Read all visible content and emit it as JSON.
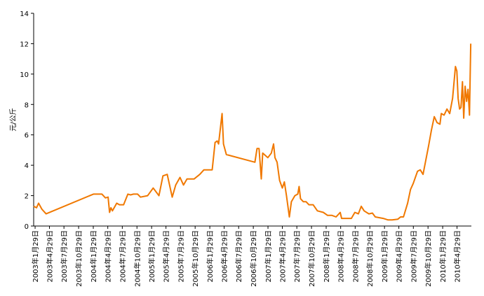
{
  "chart_data": {
    "type": "line",
    "ylabel": "元/公斤",
    "color": "#f07800",
    "xlim": [
      "2003-01-20",
      "2010-07-28"
    ],
    "ylim": [
      0,
      14
    ],
    "yticks": [
      0,
      2,
      4,
      6,
      8,
      10,
      12,
      14
    ],
    "xticks": [
      {
        "value": "2003-01-29",
        "label": "2003年1月29日"
      },
      {
        "value": "2003-04-29",
        "label": "2003年4月29日"
      },
      {
        "value": "2003-07-29",
        "label": "2003年7月29日"
      },
      {
        "value": "2003-10-29",
        "label": "2003年10月29日"
      },
      {
        "value": "2004-01-29",
        "label": "2004年1月29日"
      },
      {
        "value": "2004-04-29",
        "label": "2004年4月29日"
      },
      {
        "value": "2004-07-29",
        "label": "2004年7月29日"
      },
      {
        "value": "2004-10-29",
        "label": "2004年10月29日"
      },
      {
        "value": "2005-01-29",
        "label": "2005年1月29日"
      },
      {
        "value": "2005-04-29",
        "label": "2005年4月29日"
      },
      {
        "value": "2005-07-29",
        "label": "2005年7月29日"
      },
      {
        "value": "2005-10-29",
        "label": "2005年10月29日"
      },
      {
        "value": "2006-01-29",
        "label": "2006年1月29日"
      },
      {
        "value": "2006-04-29",
        "label": "2006年4月29日"
      },
      {
        "value": "2006-07-29",
        "label": "2006年7月29日"
      },
      {
        "value": "2006-10-29",
        "label": "2006年10月29日"
      },
      {
        "value": "2007-01-29",
        "label": "2007年1月29日"
      },
      {
        "value": "2007-04-29",
        "label": "2007年4月29日"
      },
      {
        "value": "2007-07-29",
        "label": "2007年7月29日"
      },
      {
        "value": "2007-10-29",
        "label": "2007年10月29日"
      },
      {
        "value": "2008-01-29",
        "label": "2008年1月29日"
      },
      {
        "value": "2008-04-29",
        "label": "2008年4月29日"
      },
      {
        "value": "2008-07-29",
        "label": "2008年7月29日"
      },
      {
        "value": "2008-10-29",
        "label": "2008年10月29日"
      },
      {
        "value": "2009-01-29",
        "label": "2009年1月29日"
      },
      {
        "value": "2009-04-29",
        "label": "2009年4月29日"
      },
      {
        "value": "2009-07-29",
        "label": "2009年7月29日"
      },
      {
        "value": "2009-10-29",
        "label": "2009年10月29日"
      },
      {
        "value": "2010-01-29",
        "label": "2010年1月29日"
      },
      {
        "value": "2010-04-29",
        "label": "2010年4月29日"
      }
    ],
    "x": [
      "2003-01-20",
      "2003-02-07",
      "2003-02-20",
      "2003-03-13",
      "2003-04-08",
      "2004-01-30",
      "2004-03-23",
      "2004-04-14",
      "2004-05-01",
      "2004-05-10",
      "2004-05-19",
      "2004-05-28",
      "2004-06-24",
      "2004-07-11",
      "2004-08-06",
      "2004-09-02",
      "2004-09-19",
      "2004-10-07",
      "2004-11-02",
      "2004-11-20",
      "2005-01-04",
      "2005-02-08",
      "2005-03-16",
      "2005-04-10",
      "2005-05-07",
      "2005-06-07",
      "2005-06-29",
      "2005-07-26",
      "2005-08-17",
      "2005-09-08",
      "2005-10-23",
      "2005-11-27",
      "2005-12-23",
      "2006-02-13",
      "2006-03-03",
      "2006-03-16",
      "2006-03-25",
      "2006-04-16",
      "2006-04-25",
      "2006-05-13",
      "2006-11-08",
      "2006-11-21",
      "2006-12-04",
      "2006-12-18",
      "2006-12-27",
      "2007-01-28",
      "2007-02-19",
      "2007-03-05",
      "2007-03-14",
      "2007-03-27",
      "2007-04-12",
      "2007-04-29",
      "2007-05-12",
      "2007-05-25",
      "2007-06-12",
      "2007-06-25",
      "2007-07-17",
      "2007-08-04",
      "2007-08-12",
      "2007-08-21",
      "2007-09-08",
      "2007-09-25",
      "2007-10-13",
      "2007-11-08",
      "2007-12-05",
      "2008-01-11",
      "2008-02-07",
      "2008-03-05",
      "2008-03-31",
      "2008-04-26",
      "2008-05-05",
      "2008-07-05",
      "2008-07-27",
      "2008-08-18",
      "2008-09-05",
      "2008-09-23",
      "2008-10-23",
      "2008-11-14",
      "2008-12-02",
      "2009-01-21",
      "2009-02-20",
      "2009-03-18",
      "2009-04-23",
      "2009-05-10",
      "2009-05-28",
      "2009-06-23",
      "2009-07-11",
      "2009-07-28",
      "2009-08-24",
      "2009-09-10",
      "2009-09-28",
      "2009-11-02",
      "2009-11-19",
      "2009-12-07",
      "2009-12-25",
      "2010-01-12",
      "2010-01-20",
      "2010-02-07",
      "2010-02-25",
      "2010-03-14",
      "2010-04-01",
      "2010-04-19",
      "2010-04-28",
      "2010-05-06",
      "2010-05-15",
      "2010-05-24",
      "2010-06-02",
      "2010-06-10",
      "2010-06-19",
      "2010-06-28",
      "2010-07-07",
      "2010-07-16",
      "2010-07-24"
    ],
    "values": [
      1.3,
      1.2,
      1.5,
      1.1,
      0.8,
      2.1,
      2.1,
      1.85,
      1.9,
      0.9,
      1.2,
      1.0,
      1.5,
      1.4,
      1.4,
      2.1,
      2.05,
      2.1,
      2.1,
      1.9,
      2.0,
      2.5,
      2.0,
      3.3,
      3.4,
      1.9,
      2.7,
      3.2,
      2.7,
      3.1,
      3.1,
      3.4,
      3.7,
      3.7,
      5.5,
      5.6,
      5.4,
      7.4,
      5.4,
      4.7,
      4.2,
      5.1,
      5.1,
      3.1,
      4.8,
      4.5,
      4.8,
      5.4,
      4.5,
      4.2,
      3.0,
      2.5,
      2.9,
      2.0,
      0.6,
      1.6,
      2.0,
      2.1,
      2.6,
      1.8,
      1.6,
      1.6,
      1.4,
      1.4,
      1.0,
      0.9,
      0.7,
      0.7,
      0.6,
      0.9,
      0.5,
      0.5,
      0.9,
      0.8,
      1.3,
      1.0,
      0.8,
      0.85,
      0.6,
      0.5,
      0.4,
      0.4,
      0.45,
      0.6,
      0.6,
      1.5,
      2.4,
      2.8,
      3.6,
      3.7,
      3.4,
      5.3,
      6.3,
      7.2,
      6.8,
      6.7,
      7.4,
      7.3,
      7.7,
      7.4,
      8.4,
      10.5,
      10.2,
      8.4,
      7.7,
      7.8,
      9.5,
      7.1,
      9.2,
      8.2,
      9.0,
      7.3,
      12.0
    ]
  }
}
